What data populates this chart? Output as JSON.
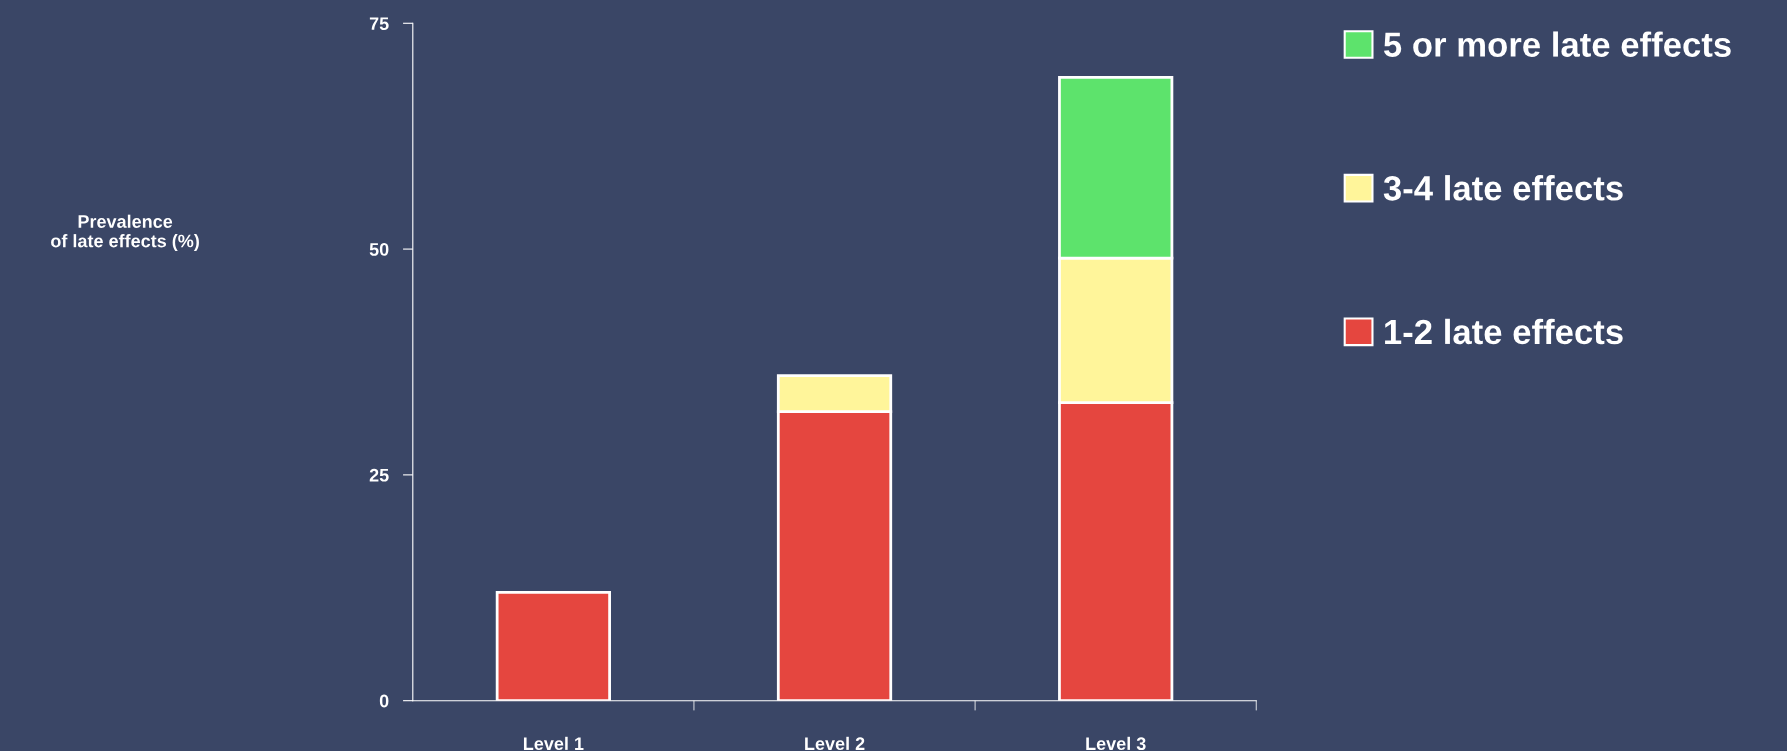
{
  "chart_data": {
    "type": "bar",
    "stacked": true,
    "annotations": [
      "Prevalence\nof late effects (%)"
    ],
    "categories": [
      "Level 1",
      "Level 2",
      "Level 3"
    ],
    "series": [
      {
        "name": "1-2 late effects",
        "color": "#e5463f",
        "values": [
          12,
          32,
          33
        ]
      },
      {
        "name": "3-4 late effects",
        "color": "#fff59a",
        "values": [
          null,
          4,
          16
        ]
      },
      {
        "name": "5 or more late effects",
        "color": "#5de36c",
        "values": [
          null,
          null,
          20
        ]
      }
    ],
    "ylim": [
      0,
      75
    ],
    "yticks": [
      0,
      25,
      50,
      75
    ],
    "grid": false,
    "legend": "right"
  }
}
